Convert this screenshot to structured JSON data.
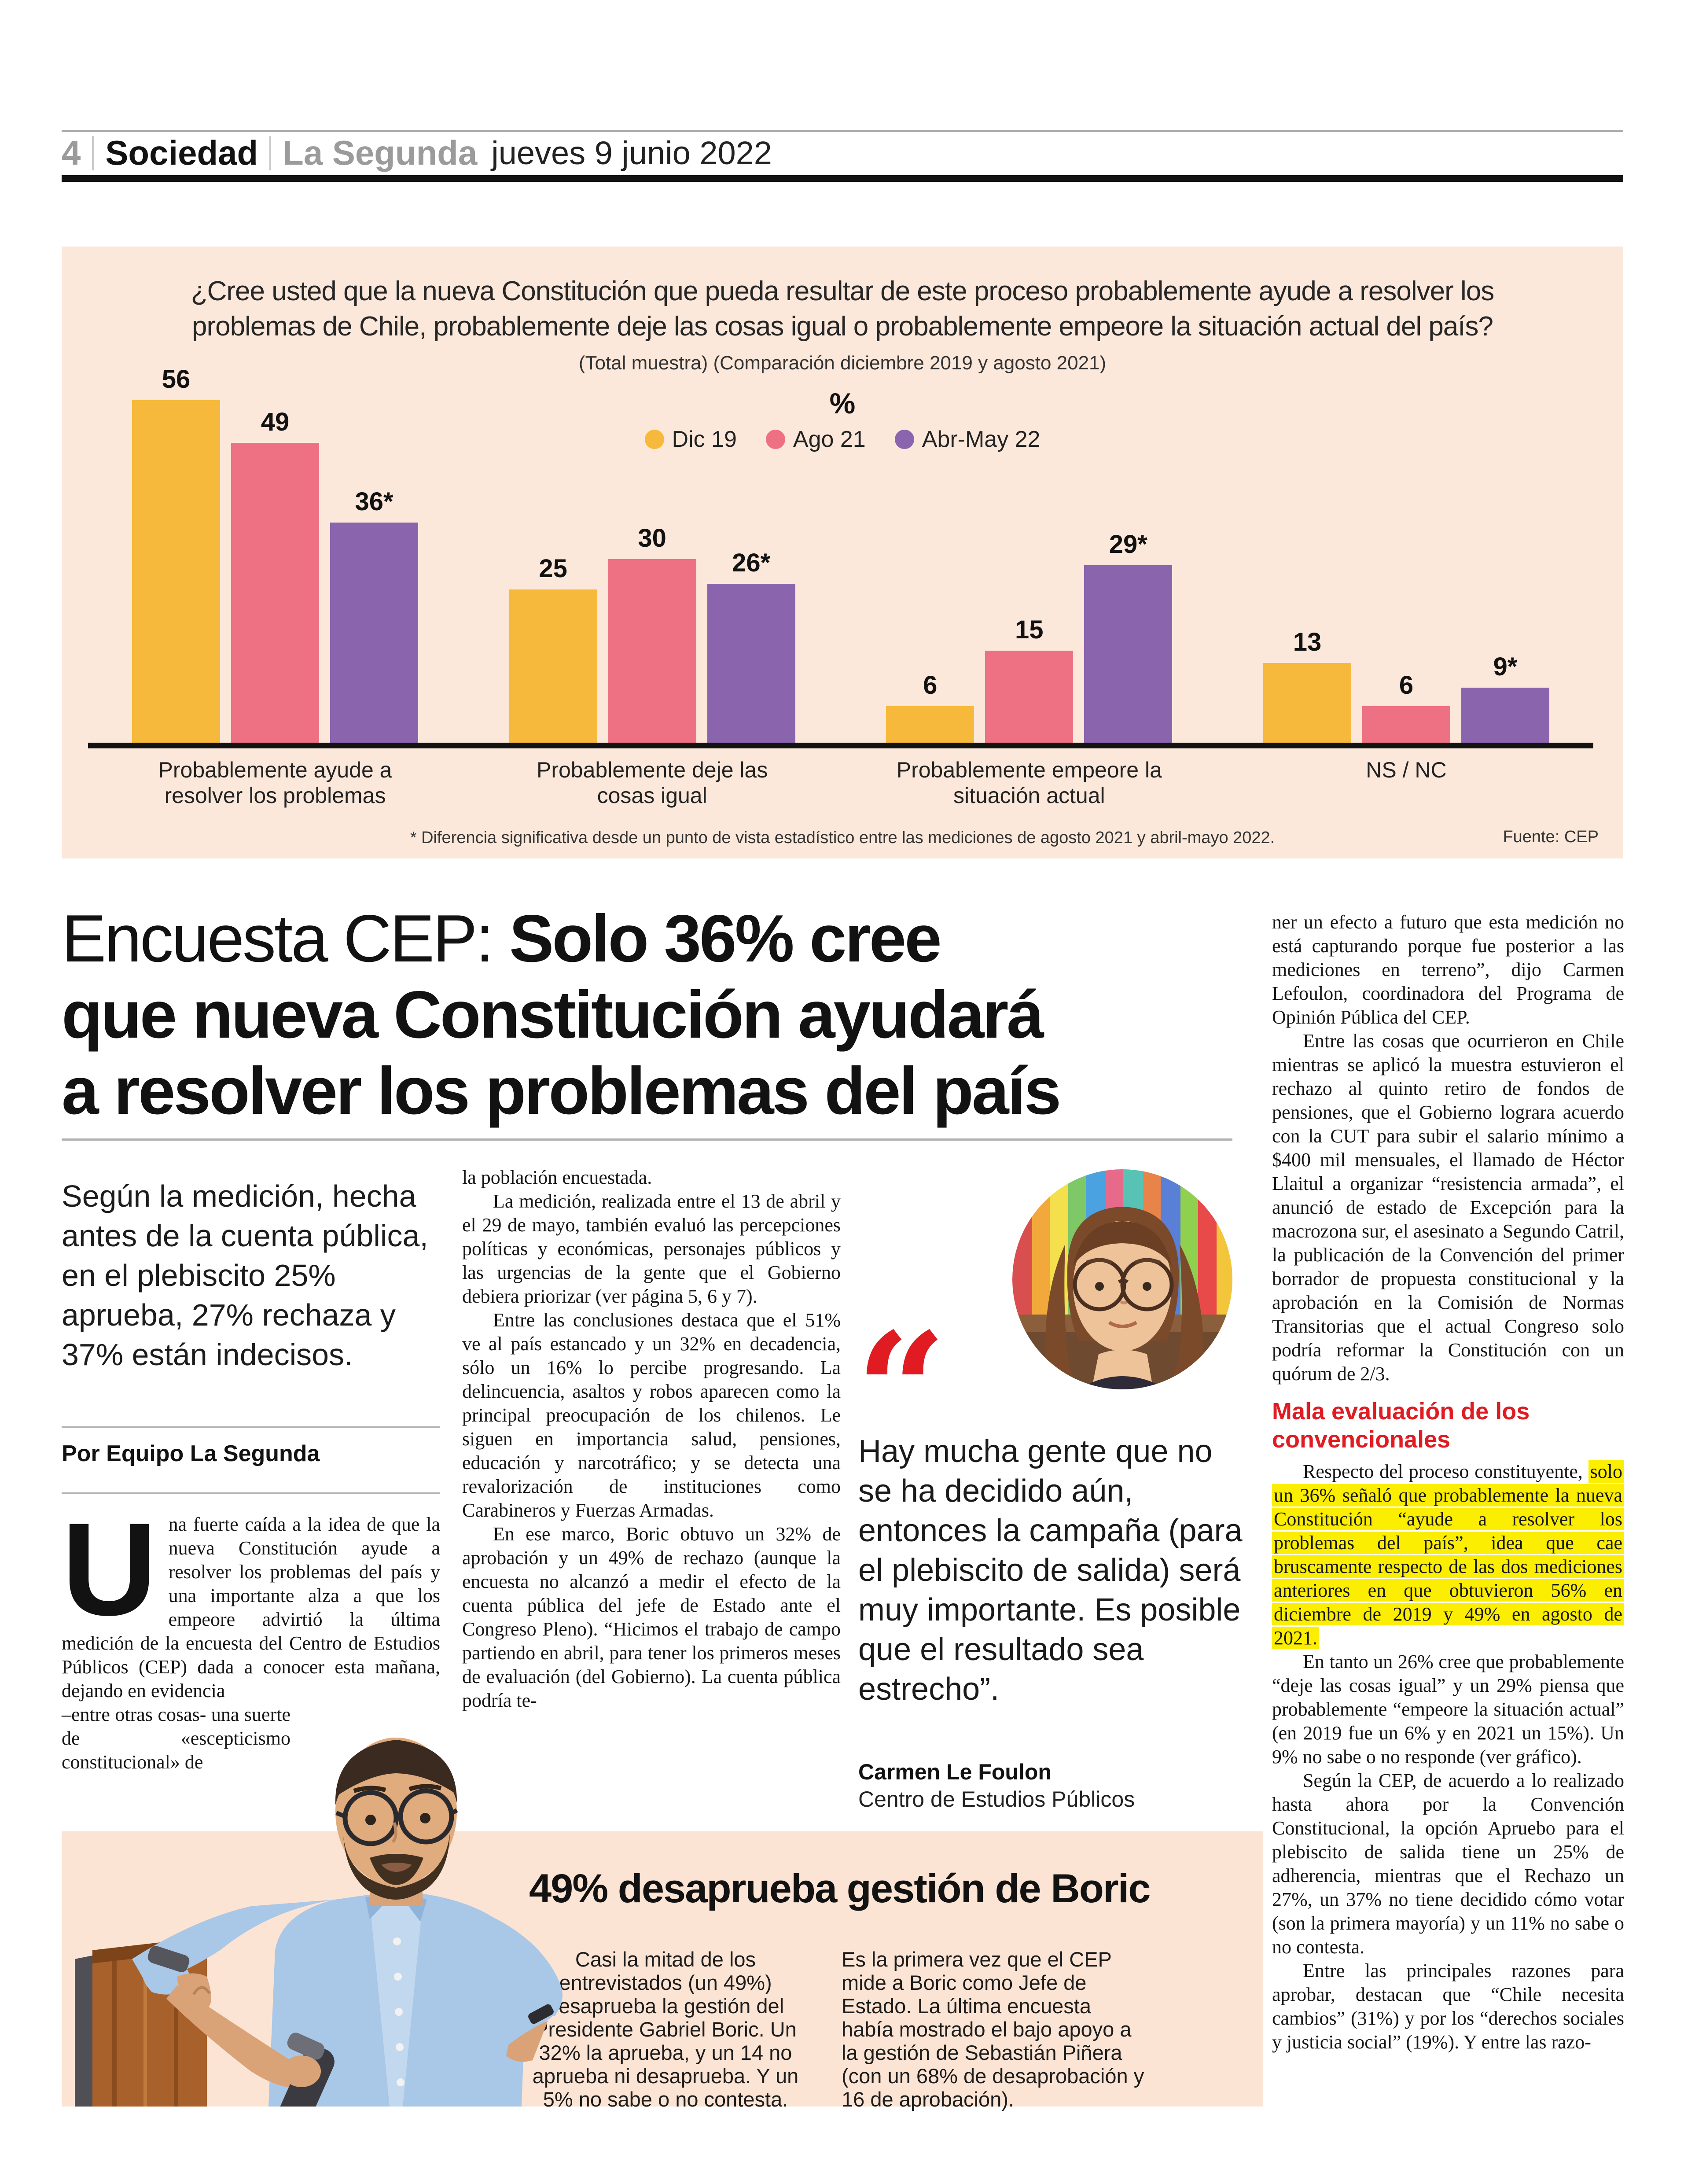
{
  "colors": {
    "accent_red": "#e01b22",
    "highlight_yellow": "#fbee00",
    "chart_bg": "#fbe8da",
    "box_bg": "#fce4d4",
    "header_gray": "#9b9b9b",
    "text": "#161616"
  },
  "header": {
    "page_number": "4",
    "section": "Sociedad",
    "newspaper": "La Segunda",
    "date": "jueves 9 junio 2022"
  },
  "chart": {
    "title_line1": "¿Cree usted que la nueva Constitución que pueda resultar de este proceso probablemente ayude a resolver los",
    "title_line2": "problemas de Chile, probablemente deje las cosas igual o probablemente empeore la situación actual del país?",
    "subtitle": "(Total muestra) (Comparación diciembre 2019 y agosto 2021)",
    "unit": "%",
    "footnote": "* Diferencia significativa desde un punto de vista estadístico entre las mediciones de agosto 2021 y abril-mayo 2022.",
    "source": "Fuente: CEP"
  },
  "chart_data": {
    "type": "bar",
    "title": "¿Cree usted que la nueva Constitución que pueda resultar de este proceso probablemente ayude a resolver los problemas de Chile, probablemente deje las cosas igual o probablemente empeore la situación actual del país?",
    "subtitle": "(Total muestra) (Comparación diciembre 2019 y agosto 2021)",
    "ylabel": "%",
    "ylim": [
      0,
      60
    ],
    "grid": false,
    "legend_position": "top-center",
    "categories": [
      "Probablemente ayude a resolver los problemas",
      "Probablemente deje las cosas igual",
      "Probablemente empeore la situación actual",
      "NS / NC"
    ],
    "categories_display": [
      [
        "Probablemente ayude a",
        "resolver los problemas"
      ],
      [
        "Probablemente deje las",
        "cosas igual"
      ],
      [
        "Probablemente empeore la",
        "situación actual"
      ],
      [
        "NS / NC"
      ]
    ],
    "series": [
      {
        "name": "Dic 19",
        "color": "#f6b93b",
        "values": [
          56,
          25,
          6,
          13
        ],
        "labels": [
          "56",
          "25",
          "6",
          "13"
        ]
      },
      {
        "name": "Ago 21",
        "color": "#ee7183",
        "values": [
          49,
          30,
          15,
          6
        ],
        "labels": [
          "49",
          "30",
          "15",
          "6"
        ]
      },
      {
        "name": "Abr-May 22",
        "color": "#8a64ad",
        "values": [
          36,
          26,
          29,
          9
        ],
        "labels": [
          "36*",
          "26*",
          "29*",
          "9*"
        ]
      }
    ],
    "footnote": "* Diferencia significativa desde un punto de vista estadístico entre las mediciones de agosto 2021 y abril-mayo 2022.",
    "source": "Fuente: CEP"
  },
  "article": {
    "headline_prefix": "Encuesta CEP: ",
    "headline_line1_bold": "Solo 36% cree",
    "headline_line2": "que nueva Constitución ayudará",
    "headline_line3": "a resolver los problemas del país",
    "standfirst": "Según la medición, hecha antes de la cuenta pública, en el plebiscito 25% aprueba, 27% rechaza y 37% están indecisos.",
    "byline": "Por Equipo La Segunda",
    "dropcap": "U",
    "col1_p1": "na fuerte caída a la idea de que la nueva Constitución ayude a resolver los problemas del país y una importante alza a que los empeore advirtió la última medición de la encuesta del Centro de Estudios Públicos (CEP) dada a conocer esta mañana, dejando en evidencia",
    "col1_p2": "–entre otras cosas- una suerte de «escepticismo constitucional» de",
    "col2_p1": "la población encuestada.",
    "col2_p2": "La medición, realizada entre el 13 de abril y el 29 de mayo, también evaluó las percepciones políticas y económicas, personajes públicos y las urgencias de la gente que el Gobierno debiera priorizar (ver página 5, 6 y 7).",
    "col2_p3": "Entre las conclusiones destaca que el 51% ve al país estancado y un 32% en decadencia, sólo un 16% lo percibe progresando. La delincuencia, asaltos y robos aparecen como la principal preocupación de los chilenos. Le siguen en importancia salud, pensiones, educación y narcotráfico; y se detecta una revalorización de instituciones como Carabineros y Fuerzas Armadas.",
    "col2_p4": "En ese marco, Boric obtuvo un 32% de aprobación y un 49% de rechazo (aunque la encuesta no alcanzó a medir el efecto de la cuenta pública del jefe de Estado ante el Congreso Pleno). “Hicimos el trabajo de campo partiendo en abril, para tener los primeros meses de evaluación (del Gobierno). La cuenta pública podría te-",
    "col4_p1": "ner un efecto a futuro que esta medición no está capturando porque fue posterior a las mediciones en terreno”, dijo Carmen Lefoulon, coordinadora del Programa de Opinión Pública del CEP.",
    "col4_p2": "Entre las cosas que ocurrieron en Chile mientras se aplicó la muestra estuvieron el rechazo al quinto retiro de fondos de pensiones, que el Gobierno lograra acuerdo con la CUT para subir el salario mínimo a $400 mil mensuales, el llamado de Héctor Llaitul a organizar “resistencia armada”, el anunció de estado de Excepción para la macrozona sur, el asesinato a Segundo Catril, la publicación de la Convención del primer borrador de propuesta constitucional y la aprobación en la Comisión de Normas Transitorias que el actual Congreso solo podría reformar la Constitución con un quórum de 2/3.",
    "col4_subhead": "Mala evaluación de los convencionales",
    "col4_p3_lead": "Respecto del proceso constituyente, ",
    "col4_p3_highlight": "solo un 36% señaló que probablemente la nueva Constitución “ayude a resolver los problemas del país”, idea que cae bruscamente respecto de las dos mediciones anteriores en que obtuvieron 56% en diciembre de 2019 y 49% en agosto de 2021.",
    "col4_p4": "En tanto un 26% cree que probablemente “deje las cosas igual” y un 29% piensa que probablemente “empeore la situación actual” (en 2019 fue un 6% y en 2021 un 15%). Un 9% no sabe o no responde (ver gráfico).",
    "col4_p5": "Según la CEP, de acuerdo a lo realizado hasta ahora por la Convención Constitucional, la opción Apruebo para el plebiscito de salida tiene un 25% de adherencia, mientras que el Rechazo un 27%, un 37% no tiene decidido cómo votar (son la primera mayoría) y un 11% no sabe o no contesta.",
    "col4_p6": "Entre las principales razones para aprobar, destacan que “Chile necesita cambios” (31%) y por los “derechos sociales y justicia social” (19%). Y entre las razo-"
  },
  "quote": {
    "mark": "“",
    "text": "Hay mucha gente que no se ha decidido aún, entonces la campaña (para el plebiscito de salida) será muy importante. Es posible que el resultado sea estrecho”.",
    "author": "Carmen Le Foulon",
    "affiliation": "Centro de Estudios Públicos"
  },
  "box": {
    "title": "49% desaprueba gestión de Boric",
    "col1": "Casi la mitad de los entrevistados (un 49%) desaprueba la gestión del Presidente Gabriel Boric. Un 32% la aprueba, y un 14 no aprueba ni desaprueba. Y un 5% no sabe o no contesta.",
    "col2": "Es la primera vez que el CEP mide a Boric como Jefe de Estado. La última encuesta había mostrado el bajo apoyo a la gestión de Sebastián Piñera (con un 68% de desaprobación y 16 de aprobación)."
  }
}
